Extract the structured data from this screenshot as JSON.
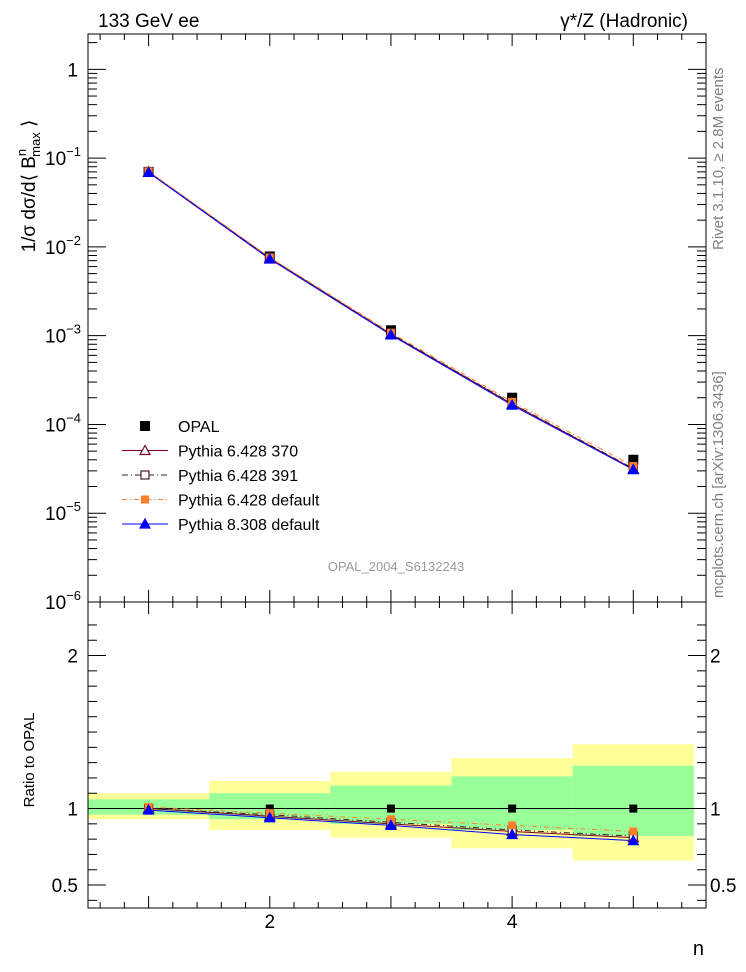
{
  "header": {
    "left_label": "133 GeV ee",
    "right_label": "γ*/Z (Hadronic)"
  },
  "side_labels": {
    "rivet": "Rivet 3.1.10, ≥ 2.8M events",
    "mcplots": "mcplots.cern.ch [arXiv:1306.3436]"
  },
  "analysis_id": "OPAL_2004_S6132243",
  "colors": {
    "data": "#000000",
    "p370": "#7f0020",
    "p391": "#4a1a28",
    "p6def": "#ff7f2a",
    "p8def": "#0000ff",
    "band_outer": "#ffff99",
    "band_inner": "#99ff99"
  },
  "chart_data": [
    {
      "type": "scatter",
      "panel": "main",
      "ylabel": "1/σ dσ/d⟨ B",
      "ylabel_sup": "n",
      "ylabel_sub": "max",
      "ylabel_end": " ⟩",
      "yscale": "log",
      "ylim": [
        1e-06,
        2.5
      ],
      "xlim": [
        0.5,
        5.6
      ],
      "y_tick_labels": [
        {
          "base": "1",
          "exp": ""
        },
        {
          "base": "10",
          "exp": "−1"
        },
        {
          "base": "10",
          "exp": "−2"
        },
        {
          "base": "10",
          "exp": "−3"
        },
        {
          "base": "10",
          "exp": "−4"
        },
        {
          "base": "10",
          "exp": "−5"
        },
        {
          "base": "10",
          "exp": "−6"
        }
      ],
      "x": [
        1,
        2,
        3,
        4,
        5
      ],
      "series": [
        {
          "name": "OPAL",
          "values": [
            0.07,
            0.0078,
            0.00115,
            0.0002,
            4e-05
          ]
        },
        {
          "name": "Pythia 6.428 370",
          "values": [
            0.07,
            0.0075,
            0.00104,
            0.00017,
            3.15e-05
          ]
        },
        {
          "name": "Pythia 6.428 391",
          "values": [
            0.07,
            0.0075,
            0.00105,
            0.000172,
            3.2e-05
          ]
        },
        {
          "name": "Pythia 6.428 default",
          "values": [
            0.071,
            0.0076,
            0.00108,
            0.00018,
            3.4e-05
          ]
        },
        {
          "name": "Pythia 8.308 default",
          "values": [
            0.069,
            0.0073,
            0.00102,
            0.000165,
            3.1e-05
          ]
        }
      ]
    },
    {
      "type": "scatter",
      "panel": "ratio",
      "ylabel": "Ratio to OPAL",
      "xlabel": "n",
      "ylim": [
        0.35,
        2.35
      ],
      "xlim": [
        0.5,
        5.6
      ],
      "x_tick_labels": [
        "2",
        "4"
      ],
      "y_tick_labels": [
        "0.5",
        "1",
        "2"
      ],
      "x": [
        1,
        2,
        3,
        4,
        5
      ],
      "bands": {
        "edges": [
          0.5,
          1.5,
          2.5,
          3.5,
          4.5,
          5.5
        ],
        "outer": [
          [
            0.93,
            1.1
          ],
          [
            0.86,
            1.18
          ],
          [
            0.81,
            1.24
          ],
          [
            0.74,
            1.33
          ],
          [
            0.66,
            1.42
          ]
        ],
        "inner": [
          [
            0.96,
            1.06
          ],
          [
            0.93,
            1.1
          ],
          [
            0.9,
            1.15
          ],
          [
            0.86,
            1.21
          ],
          [
            0.82,
            1.28
          ]
        ]
      },
      "series": [
        {
          "name": "Pythia 6.428 370",
          "values": [
            1.0,
            0.95,
            0.9,
            0.85,
            0.81
          ]
        },
        {
          "name": "Pythia 6.428 391",
          "values": [
            1.0,
            0.96,
            0.91,
            0.86,
            0.82
          ]
        },
        {
          "name": "Pythia 6.428 default",
          "values": [
            1.01,
            0.97,
            0.93,
            0.89,
            0.85
          ]
        },
        {
          "name": "Pythia 8.308 default",
          "values": [
            0.99,
            0.94,
            0.89,
            0.83,
            0.79
          ]
        }
      ]
    }
  ]
}
